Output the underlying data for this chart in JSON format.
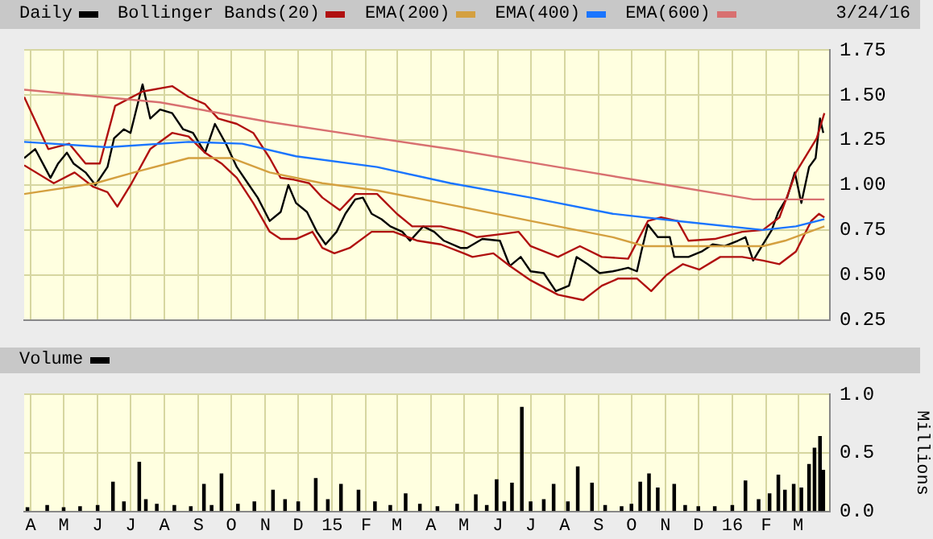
{
  "chart_data": [
    {
      "type": "line",
      "legend": "top left",
      "grid": true,
      "tick_labels": "y",
      "annotations": [
        "3/24/16"
      ],
      "xlim": [
        "2014-03-26",
        "2016-03-30"
      ],
      "xticks": [
        {
          "value": "2014-04",
          "label": null
        },
        {
          "value": "2014-05",
          "label": null
        },
        {
          "value": "2014-06",
          "label": null
        },
        {
          "value": "2014-07",
          "label": null
        },
        {
          "value": "2014-08",
          "label": null
        },
        {
          "value": "2014-09",
          "label": null
        },
        {
          "value": "2014-10",
          "label": null
        },
        {
          "value": "2014-11",
          "label": null
        },
        {
          "value": "2014-12",
          "label": null
        },
        {
          "value": "2015-01",
          "label": null
        },
        {
          "value": "2015-02",
          "label": null
        },
        {
          "value": "2015-03",
          "label": null
        },
        {
          "value": "2015-04",
          "label": null
        },
        {
          "value": "2015-05",
          "label": null
        },
        {
          "value": "2015-06",
          "label": null
        },
        {
          "value": "2015-07",
          "label": null
        },
        {
          "value": "2015-08",
          "label": null
        },
        {
          "value": "2015-09",
          "label": null
        },
        {
          "value": "2015-10",
          "label": null
        },
        {
          "value": "2015-11",
          "label": null
        },
        {
          "value": "2015-12",
          "label": null
        },
        {
          "value": "2016-01",
          "label": null
        },
        {
          "value": "2016-02",
          "label": null
        },
        {
          "value": "2016-03",
          "label": null
        }
      ],
      "ylim": [
        0.25,
        1.75
      ],
      "yticks": [
        0.25,
        {
          "value": 0.5,
          "label": "0.50"
        },
        0.75,
        {
          "value": 1,
          "label": "1.00"
        },
        1.25,
        {
          "value": 1.5,
          "label": "1.50"
        },
        1.75
      ],
      "series": [
        {
          "name": "Daily",
          "color": "#000000",
          "x": [
            "2014-03-26",
            "2014-04-05",
            "2014-04-12",
            "2014-04-19",
            "2014-04-26",
            "2014-05-04",
            "2014-05-10",
            "2014-05-21",
            "2014-05-30",
            "2014-06-10",
            "2014-06-16",
            "2014-06-25",
            "2014-07-01",
            "2014-07-12",
            "2014-07-19",
            "2014-07-28",
            "2014-08-08",
            "2014-08-18",
            "2014-08-27",
            "2014-09-07",
            "2014-09-16",
            "2014-09-26",
            "2014-10-06",
            "2014-10-16",
            "2014-10-25",
            "2014-11-05",
            "2014-11-15",
            "2014-11-22",
            "2014-11-29",
            "2014-12-09",
            "2014-12-18",
            "2014-12-26",
            "2015-01-05",
            "2015-01-13",
            "2015-01-22",
            "2015-01-29",
            "2015-02-06",
            "2015-02-15",
            "2015-02-23",
            "2015-03-06",
            "2015-03-13",
            "2015-03-25",
            "2015-04-04",
            "2015-04-13",
            "2015-04-28",
            "2015-05-04",
            "2015-05-18",
            "2015-06-03",
            "2015-06-12",
            "2015-06-22",
            "2015-07-01",
            "2015-07-13",
            "2015-07-24",
            "2015-08-05",
            "2015-08-12",
            "2015-08-22",
            "2015-09-02",
            "2015-09-14",
            "2015-09-28",
            "2015-10-06",
            "2015-10-10",
            "2015-10-16",
            "2015-10-25",
            "2015-11-05",
            "2015-11-09",
            "2015-11-22",
            "2015-12-04",
            "2015-12-14",
            "2015-12-25",
            "2016-01-06",
            "2016-01-13",
            "2016-01-20",
            "2016-01-28",
            "2016-02-06",
            "2016-02-12",
            "2016-02-20",
            "2016-02-27",
            "2016-03-04",
            "2016-03-11",
            "2016-03-17",
            "2016-03-21",
            "2016-03-24"
          ],
          "values": [
            1.15,
            1.2,
            1.12,
            1.04,
            1.12,
            1.18,
            1.12,
            1.07,
            1.0,
            1.1,
            1.26,
            1.31,
            1.29,
            1.56,
            1.37,
            1.42,
            1.4,
            1.31,
            1.29,
            1.18,
            1.34,
            1.23,
            1.1,
            1.01,
            0.93,
            0.8,
            0.85,
            1.0,
            0.9,
            0.85,
            0.74,
            0.67,
            0.74,
            0.84,
            0.92,
            0.93,
            0.84,
            0.81,
            0.77,
            0.74,
            0.69,
            0.77,
            0.74,
            0.69,
            0.65,
            0.65,
            0.7,
            0.69,
            0.55,
            0.6,
            0.52,
            0.51,
            0.41,
            0.44,
            0.6,
            0.56,
            0.51,
            0.52,
            0.54,
            0.52,
            0.63,
            0.78,
            0.71,
            0.71,
            0.6,
            0.6,
            0.63,
            0.67,
            0.66,
            0.69,
            0.71,
            0.58,
            0.66,
            0.75,
            0.85,
            0.93,
            1.07,
            0.9,
            1.1,
            1.15,
            1.37,
            1.29
          ]
        },
        {
          "name": "Bollinger Bands(20)",
          "color": "#b01010",
          "x": [
            "2014-03-26",
            "2014-04-17",
            "2014-05-06",
            "2014-05-21",
            "2014-06-03",
            "2014-06-17",
            "2014-07-12",
            "2014-08-08",
            "2014-08-23",
            "2014-09-07",
            "2014-09-19",
            "2014-10-06",
            "2014-10-21",
            "2014-11-05",
            "2014-11-15",
            "2014-11-27",
            "2014-12-11",
            "2014-12-23",
            "2015-01-08",
            "2015-01-22",
            "2015-02-11",
            "2015-03-01",
            "2015-03-15",
            "2015-04-10",
            "2015-05-01",
            "2015-05-13",
            "2015-06-08",
            "2015-06-20",
            "2015-07-01",
            "2015-07-26",
            "2015-08-15",
            "2015-09-04",
            "2015-09-28",
            "2015-10-16",
            "2015-10-28",
            "2015-11-12",
            "2015-11-22",
            "2015-12-16",
            "2016-01-10",
            "2016-01-29",
            "2016-02-13",
            "2016-02-28",
            "2016-03-18",
            "2016-03-25"
          ],
          "values": [
            1.49,
            1.2,
            1.23,
            1.12,
            1.12,
            1.44,
            1.52,
            1.55,
            1.49,
            1.45,
            1.37,
            1.34,
            1.29,
            1.15,
            1.04,
            1.03,
            1.01,
            0.93,
            0.86,
            0.95,
            0.95,
            0.84,
            0.77,
            0.77,
            0.74,
            0.71,
            0.73,
            0.74,
            0.66,
            0.6,
            0.66,
            0.6,
            0.59,
            0.8,
            0.82,
            0.8,
            0.69,
            0.7,
            0.74,
            0.75,
            0.82,
            1.07,
            1.26,
            1.4
          ]
        },
        {
          "color": "#b01010",
          "x": [
            "2014-03-26",
            "2014-04-22",
            "2014-05-11",
            "2014-05-28",
            "2014-06-10",
            "2014-06-19",
            "2014-07-02",
            "2014-07-19",
            "2014-08-08",
            "2014-08-23",
            "2014-09-07",
            "2014-09-22",
            "2014-10-06",
            "2014-10-21",
            "2014-11-05",
            "2014-11-15",
            "2014-11-29",
            "2014-12-14",
            "2014-12-23",
            "2015-01-03",
            "2015-01-17",
            "2015-02-06",
            "2015-02-26",
            "2015-03-20",
            "2015-04-10",
            "2015-05-01",
            "2015-05-09",
            "2015-05-28",
            "2015-06-12",
            "2015-07-01",
            "2015-07-26",
            "2015-08-18",
            "2015-09-04",
            "2015-09-19",
            "2015-10-06",
            "2015-10-19",
            "2015-11-02",
            "2015-11-17",
            "2015-12-02",
            "2015-12-21",
            "2016-01-10",
            "2016-01-29",
            "2016-02-13",
            "2016-02-28",
            "2016-03-13",
            "2016-03-20",
            "2016-03-25"
          ],
          "values": [
            1.11,
            1.01,
            1.07,
            0.99,
            0.96,
            0.88,
            1.01,
            1.2,
            1.29,
            1.27,
            1.18,
            1.12,
            1.04,
            0.9,
            0.74,
            0.7,
            0.7,
            0.74,
            0.65,
            0.62,
            0.65,
            0.74,
            0.74,
            0.69,
            0.67,
            0.62,
            0.6,
            0.62,
            0.55,
            0.47,
            0.39,
            0.36,
            0.44,
            0.48,
            0.48,
            0.41,
            0.5,
            0.56,
            0.53,
            0.6,
            0.6,
            0.58,
            0.56,
            0.63,
            0.8,
            0.84,
            0.82
          ]
        },
        {
          "name": "EMA(200)",
          "color": "#d4a040",
          "x": [
            "2014-03-26",
            "2014-05-30",
            "2014-07-04",
            "2014-08-23",
            "2014-10-01",
            "2014-11-05",
            "2014-12-23",
            "2015-02-11",
            "2015-04-19",
            "2015-07-01",
            "2015-09-14",
            "2015-10-13",
            "2015-12-11",
            "2016-01-29",
            "2016-02-18",
            "2016-03-25"
          ],
          "values": [
            0.95,
            1.01,
            1.07,
            1.15,
            1.15,
            1.07,
            1.01,
            0.97,
            0.89,
            0.8,
            0.71,
            0.66,
            0.66,
            0.66,
            0.69,
            0.77
          ]
        },
        {
          "name": "EMA(400)",
          "color": "#1a75ff",
          "x": [
            "2014-03-26",
            "2014-06-10",
            "2014-08-23",
            "2014-10-11",
            "2014-11-29",
            "2015-02-11",
            "2015-04-19",
            "2015-07-01",
            "2015-09-14",
            "2015-11-12",
            "2016-01-29",
            "2016-02-28",
            "2016-03-25"
          ],
          "values": [
            1.24,
            1.21,
            1.24,
            1.23,
            1.16,
            1.1,
            1.01,
            0.93,
            0.84,
            0.8,
            0.75,
            0.77,
            0.81
          ]
        },
        {
          "name": "EMA(600)",
          "color": "#d87070",
          "x": [
            "2014-03-26",
            "2014-07-28",
            "2014-11-05",
            "2015-02-11",
            "2015-04-19",
            "2015-07-26",
            "2015-11-02",
            "2016-01-20",
            "2016-02-18",
            "2016-03-25"
          ],
          "values": [
            1.53,
            1.46,
            1.35,
            1.26,
            1.2,
            1.1,
            1.0,
            0.92,
            0.92,
            0.92
          ]
        }
      ]
    },
    {
      "type": "bar",
      "legend": "top left",
      "grid": true,
      "ylabel": "Millions",
      "xlim": [
        "2014-03-26",
        "2016-03-30"
      ],
      "xticks": [
        {
          "value": "2014-04",
          "label": "A"
        },
        {
          "value": "2014-05",
          "label": "M"
        },
        {
          "value": "2014-06",
          "label": "J"
        },
        {
          "value": "2014-07",
          "label": "J"
        },
        {
          "value": "2014-08",
          "label": "A"
        },
        {
          "value": "2014-09",
          "label": "S"
        },
        {
          "value": "2014-10",
          "label": "O"
        },
        {
          "value": "2014-11",
          "label": "N"
        },
        {
          "value": "2014-12",
          "label": "D"
        },
        {
          "value": "2015-01",
          "label": "15"
        },
        {
          "value": "2015-02",
          "label": "F"
        },
        {
          "value": "2015-03",
          "label": "M"
        },
        {
          "value": "2015-04",
          "label": "A"
        },
        {
          "value": "2015-05",
          "label": "M"
        },
        {
          "value": "2015-06",
          "label": "J"
        },
        {
          "value": "2015-07",
          "label": "J"
        },
        {
          "value": "2015-08",
          "label": "A"
        },
        {
          "value": "2015-09",
          "label": "S"
        },
        {
          "value": "2015-10",
          "label": "O"
        },
        {
          "value": "2015-11",
          "label": "N"
        },
        {
          "value": "2015-12",
          "label": "D"
        },
        {
          "value": "2016-01",
          "label": "16"
        },
        {
          "value": "2016-02",
          "label": "F"
        },
        {
          "value": "2016-03",
          "label": "M"
        }
      ],
      "ylim": [
        0,
        1
      ],
      "yticks": [
        {
          "value": 0,
          "label": "0.0"
        },
        0.5,
        {
          "value": 1,
          "label": "1.0"
        }
      ],
      "series": [
        {
          "name": "Volume",
          "color": "#000000",
          "x": [
            "2014-03-29",
            "2014-04-16",
            "2014-05-01",
            "2014-05-16",
            "2014-06-01",
            "2014-06-15",
            "2014-06-25",
            "2014-07-09",
            "2014-07-15",
            "2014-07-25",
            "2014-08-10",
            "2014-08-25",
            "2014-09-06",
            "2014-09-13",
            "2014-09-22",
            "2014-10-07",
            "2014-10-22",
            "2014-11-08",
            "2014-11-19",
            "2014-12-01",
            "2014-12-17",
            "2014-12-28",
            "2015-01-09",
            "2015-01-25",
            "2015-02-09",
            "2015-02-23",
            "2015-03-09",
            "2015-03-22",
            "2015-04-07",
            "2015-04-25",
            "2015-05-12",
            "2015-05-22",
            "2015-05-31",
            "2015-06-07",
            "2015-06-14",
            "2015-06-23",
            "2015-07-01",
            "2015-07-13",
            "2015-07-22",
            "2015-08-04",
            "2015-08-13",
            "2015-08-26",
            "2015-09-07",
            "2015-09-22",
            "2015-10-01",
            "2015-10-09",
            "2015-10-17",
            "2015-10-25",
            "2015-11-09",
            "2015-11-19",
            "2015-12-01",
            "2015-12-16",
            "2016-01-01",
            "2016-01-13",
            "2016-01-25",
            "2016-02-04",
            "2016-02-12",
            "2016-02-18",
            "2016-02-26",
            "2016-03-04",
            "2016-03-11",
            "2016-03-16",
            "2016-03-21",
            "2016-03-24"
          ],
          "values": [
            0.03,
            0.05,
            0.03,
            0.04,
            0.05,
            0.25,
            0.08,
            0.42,
            0.1,
            0.06,
            0.05,
            0.04,
            0.23,
            0.05,
            0.32,
            0.06,
            0.08,
            0.18,
            0.1,
            0.08,
            0.28,
            0.1,
            0.23,
            0.18,
            0.08,
            0.05,
            0.15,
            0.06,
            0.04,
            0.06,
            0.14,
            0.05,
            0.27,
            0.08,
            0.24,
            0.89,
            0.08,
            0.1,
            0.23,
            0.08,
            0.38,
            0.24,
            0.05,
            0.04,
            0.06,
            0.25,
            0.32,
            0.2,
            0.23,
            0.05,
            0.04,
            0.04,
            0.05,
            0.26,
            0.1,
            0.15,
            0.31,
            0.18,
            0.23,
            0.2,
            0.4,
            0.54,
            0.64,
            0.35
          ]
        }
      ]
    }
  ]
}
